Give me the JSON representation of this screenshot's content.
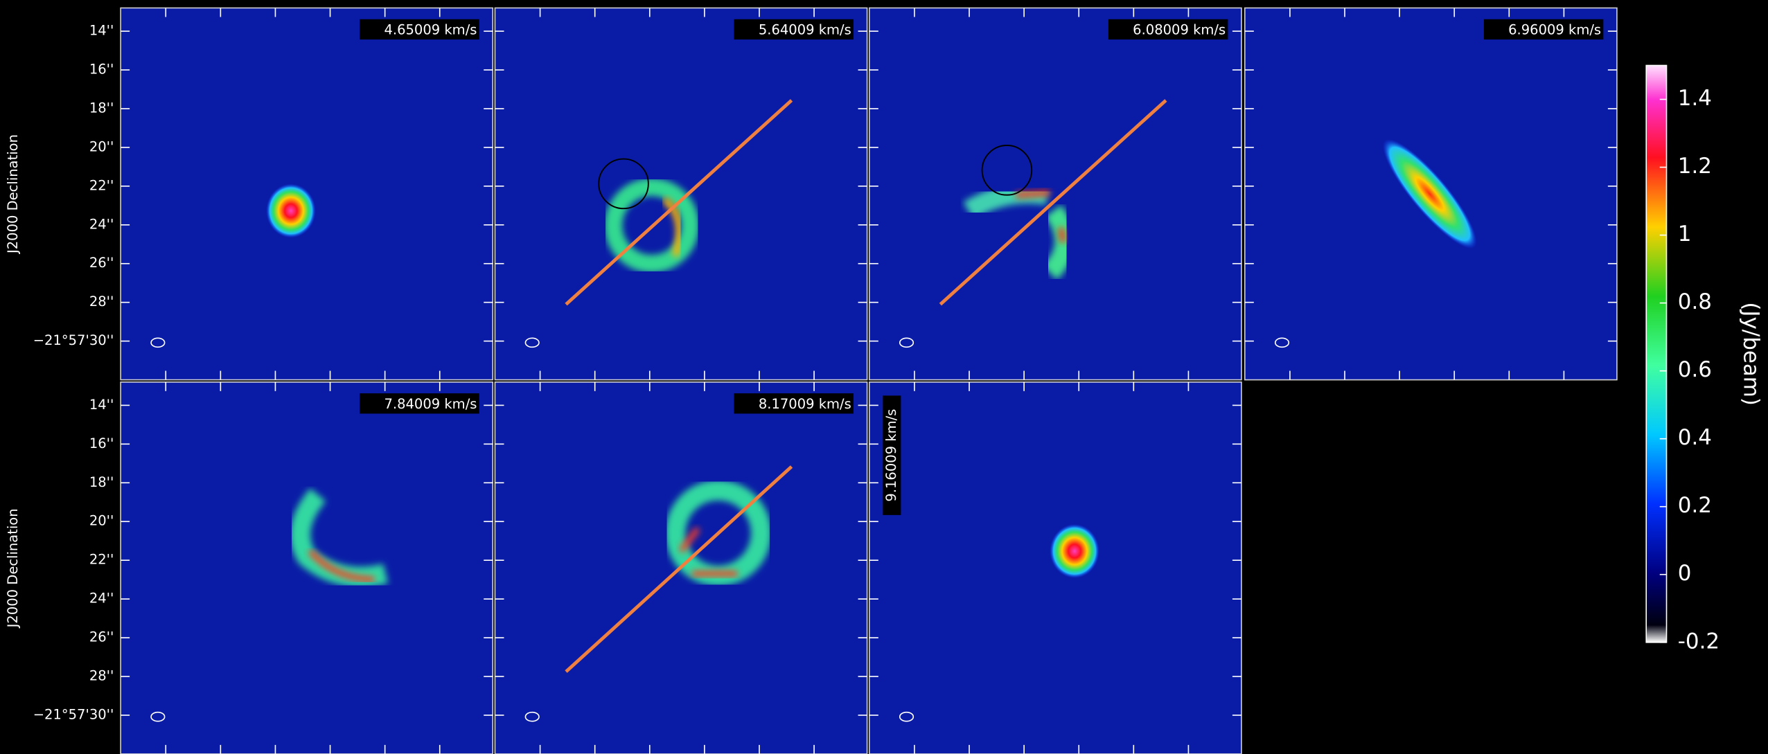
{
  "chart_data": {
    "type": "channel-map",
    "y_label": "J2000 Declination",
    "panels": [
      "4.65009 km/s",
      "5.64009 km/s",
      "6.08009 km/s",
      "6.96009 km/s",
      "7.84009 km/s",
      "8.17009 km/s",
      "9.16009 km/s"
    ],
    "ylim": [
      32.0,
      12.8
    ],
    "yticks": [
      {
        "value": 14,
        "label": "14''"
      },
      {
        "value": 16,
        "label": "16''"
      },
      {
        "value": 18,
        "label": "18''"
      },
      {
        "value": 20,
        "label": "20''"
      },
      {
        "value": 22,
        "label": "22''"
      },
      {
        "value": 24,
        "label": "24''"
      },
      {
        "value": 26,
        "label": "26''"
      },
      {
        "value": 28,
        "label": "28''"
      },
      {
        "value": 30,
        "label": "−21°57'30''"
      }
    ],
    "colorbar": {
      "label": "(Jy/beam)",
      "lim": [
        -0.2,
        1.5
      ],
      "ticks": [
        1.4,
        1.2,
        1,
        0.8,
        0.6,
        0.4,
        0.2,
        0,
        -0.2
      ]
    }
  }
}
